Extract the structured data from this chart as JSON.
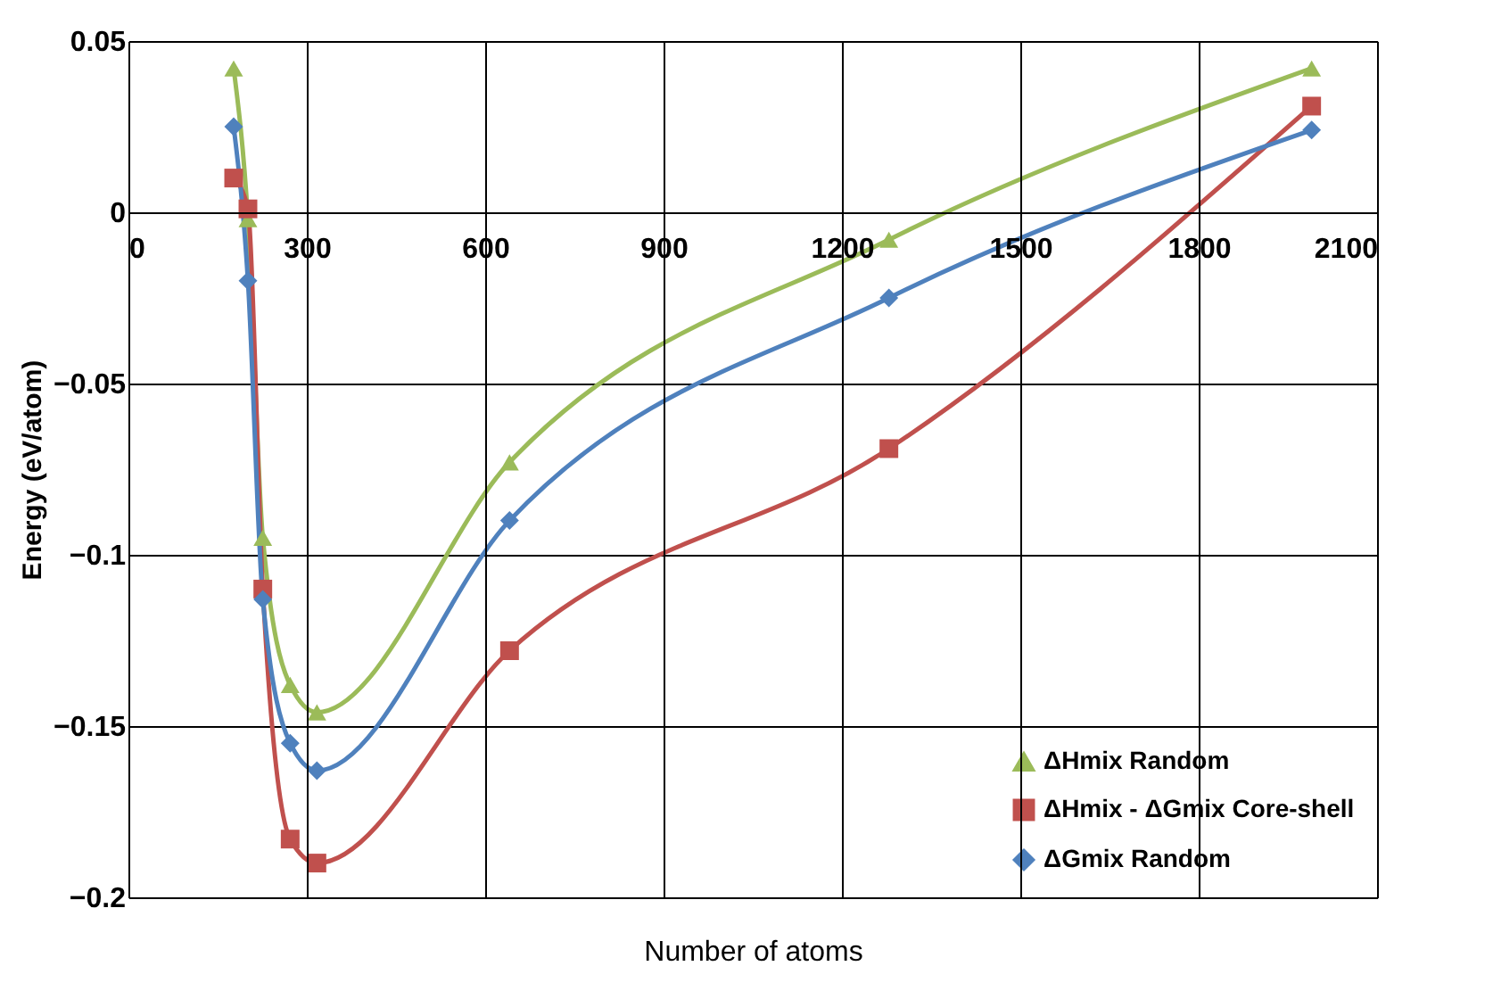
{
  "chart_data": {
    "type": "line",
    "xlabel": "Number of atoms",
    "ylabel": "Energy (eV/atom)",
    "x": [
      177,
      201,
      226,
      272,
      317,
      641,
      1279,
      1990
    ],
    "series": [
      {
        "name": "ΔHmix Random",
        "color": "#9bbb59",
        "marker": "triangle",
        "values": [
          0.042,
          -0.002,
          -0.095,
          -0.138,
          -0.146,
          -0.073,
          -0.008,
          0.042
        ]
      },
      {
        "name": "ΔHmix - ΔGmix Core-shell",
        "color": "#c0504d",
        "marker": "square",
        "values": [
          0.01,
          0.001,
          -0.11,
          -0.183,
          -0.19,
          -0.128,
          -0.069,
          0.031
        ]
      },
      {
        "name": "ΔGmix Random",
        "color": "#4f81bd",
        "marker": "diamond",
        "values": [
          0.025,
          -0.02,
          -0.113,
          -0.155,
          -0.163,
          -0.09,
          -0.025,
          0.024
        ]
      }
    ],
    "xlim": [
      0,
      2100
    ],
    "xticks": [
      0,
      300,
      600,
      900,
      1200,
      1500,
      1800,
      2100
    ],
    "ylim": [
      -0.2,
      0.05
    ],
    "yticks": [
      {
        "value": -0.2,
        "label": "−0.2"
      },
      {
        "value": -0.15,
        "label": "−0.15"
      },
      {
        "value": -0.1,
        "label": "−0.1"
      },
      {
        "value": -0.05,
        "label": "−0.05"
      },
      0,
      0.05
    ],
    "grid": true,
    "legend": "bottom right",
    "line_style": "solid"
  }
}
